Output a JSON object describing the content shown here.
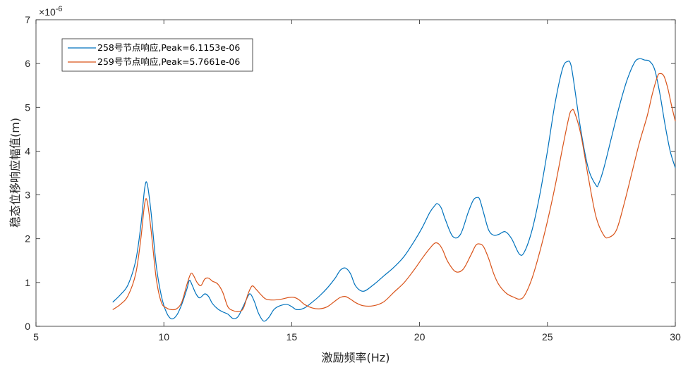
{
  "chart_data": {
    "type": "line",
    "xlabel": "激励频率(Hz)",
    "ylabel": "稳态位移响应幅值(m)",
    "xlim": [
      5,
      30
    ],
    "ylim": [
      0,
      7
    ],
    "xticks": [
      "5",
      "10",
      "15",
      "20",
      "25",
      "30"
    ],
    "yticks": [
      "0",
      "1",
      "2",
      "3",
      "4",
      "5",
      "6",
      "7"
    ],
    "y_exponent": {
      "base": "10",
      "power": "-6"
    },
    "legend_position": "top-left",
    "grid": false,
    "series": [
      {
        "name": "258号节点响应,Peak=6.1153e-06",
        "color": "#0072BD",
        "x": [
          8,
          8.3,
          8.6,
          8.9,
          9.1,
          9.25,
          9.35,
          9.5,
          9.7,
          9.9,
          10.1,
          10.3,
          10.5,
          10.7,
          10.9,
          11.0,
          11.1,
          11.25,
          11.4,
          11.6,
          11.75,
          11.9,
          12.1,
          12.3,
          12.5,
          12.7,
          12.9,
          13.1,
          13.3,
          13.4,
          13.55,
          13.7,
          13.9,
          14.1,
          14.3,
          14.5,
          14.8,
          15.0,
          15.2,
          15.5,
          15.8,
          16.1,
          16.4,
          16.7,
          16.9,
          17.1,
          17.3,
          17.5,
          17.8,
          18.2,
          18.6,
          19.0,
          19.4,
          19.8,
          20.1,
          20.4,
          20.6,
          20.7,
          20.85,
          21.0,
          21.3,
          21.6,
          21.9,
          22.1,
          22.25,
          22.35,
          22.5,
          22.7,
          22.9,
          23.1,
          23.35,
          23.6,
          23.9,
          24.1,
          24.4,
          24.7,
          25.0,
          25.3,
          25.6,
          25.8,
          25.9,
          26.0,
          26.3,
          26.6,
          26.9,
          27.0,
          27.2,
          27.5,
          27.8,
          28.1,
          28.4,
          28.6,
          28.8,
          29.0,
          29.2,
          29.4,
          29.6,
          29.8,
          30.0
        ],
        "y": [
          0.55,
          0.72,
          0.95,
          1.5,
          2.3,
          3.15,
          3.25,
          2.6,
          1.4,
          0.7,
          0.32,
          0.17,
          0.25,
          0.5,
          0.85,
          1.05,
          0.95,
          0.75,
          0.65,
          0.74,
          0.68,
          0.52,
          0.4,
          0.33,
          0.28,
          0.18,
          0.22,
          0.45,
          0.7,
          0.73,
          0.55,
          0.3,
          0.12,
          0.2,
          0.38,
          0.46,
          0.5,
          0.45,
          0.38,
          0.42,
          0.55,
          0.7,
          0.88,
          1.1,
          1.28,
          1.33,
          1.2,
          0.92,
          0.8,
          0.95,
          1.15,
          1.35,
          1.6,
          1.95,
          2.25,
          2.6,
          2.76,
          2.8,
          2.7,
          2.45,
          2.05,
          2.1,
          2.6,
          2.88,
          2.94,
          2.9,
          2.6,
          2.2,
          2.08,
          2.1,
          2.16,
          2.0,
          1.65,
          1.7,
          2.2,
          3.0,
          4.0,
          5.1,
          5.9,
          6.05,
          6.0,
          5.7,
          4.5,
          3.6,
          3.22,
          3.25,
          3.6,
          4.3,
          5.0,
          5.6,
          6.02,
          6.11,
          6.08,
          6.05,
          5.85,
          5.3,
          4.6,
          4.0,
          3.62
        ]
      },
      {
        "name": "259号节点响应,Peak=5.7661e-06",
        "color": "#D95319",
        "x": [
          8,
          8.3,
          8.6,
          8.9,
          9.1,
          9.25,
          9.35,
          9.5,
          9.7,
          9.9,
          10.1,
          10.3,
          10.5,
          10.7,
          10.9,
          11.05,
          11.15,
          11.3,
          11.45,
          11.6,
          11.75,
          11.9,
          12.1,
          12.3,
          12.5,
          12.7,
          12.9,
          13.1,
          13.3,
          13.45,
          13.6,
          13.8,
          14.0,
          14.3,
          14.6,
          14.9,
          15.1,
          15.3,
          15.5,
          15.8,
          16.1,
          16.4,
          16.7,
          16.9,
          17.1,
          17.3,
          17.5,
          17.8,
          18.2,
          18.6,
          19.0,
          19.4,
          19.8,
          20.1,
          20.4,
          20.6,
          20.75,
          20.9,
          21.1,
          21.4,
          21.7,
          22.0,
          22.2,
          22.35,
          22.5,
          22.7,
          22.9,
          23.1,
          23.4,
          23.7,
          23.9,
          24.1,
          24.4,
          24.7,
          25.0,
          25.3,
          25.6,
          25.85,
          25.95,
          26.05,
          26.3,
          26.6,
          26.9,
          27.2,
          27.4,
          27.7,
          28.0,
          28.3,
          28.6,
          28.9,
          29.1,
          29.3,
          29.4,
          29.55,
          29.7,
          29.85,
          30.0
        ],
        "y": [
          0.38,
          0.5,
          0.7,
          1.2,
          2.0,
          2.8,
          2.85,
          2.2,
          1.1,
          0.55,
          0.42,
          0.38,
          0.4,
          0.55,
          0.95,
          1.2,
          1.17,
          1.0,
          0.93,
          1.08,
          1.1,
          1.03,
          0.97,
          0.78,
          0.45,
          0.36,
          0.34,
          0.4,
          0.75,
          0.92,
          0.85,
          0.72,
          0.62,
          0.6,
          0.62,
          0.66,
          0.66,
          0.6,
          0.5,
          0.42,
          0.4,
          0.45,
          0.58,
          0.66,
          0.68,
          0.62,
          0.54,
          0.47,
          0.47,
          0.56,
          0.78,
          1.0,
          1.3,
          1.55,
          1.78,
          1.9,
          1.88,
          1.75,
          1.48,
          1.25,
          1.3,
          1.62,
          1.85,
          1.88,
          1.82,
          1.55,
          1.2,
          0.95,
          0.75,
          0.66,
          0.62,
          0.7,
          1.1,
          1.7,
          2.4,
          3.2,
          4.1,
          4.8,
          4.93,
          4.9,
          4.4,
          3.4,
          2.5,
          2.08,
          2.03,
          2.2,
          2.8,
          3.5,
          4.2,
          4.8,
          5.3,
          5.7,
          5.77,
          5.72,
          5.45,
          5.05,
          4.68
        ]
      }
    ]
  }
}
